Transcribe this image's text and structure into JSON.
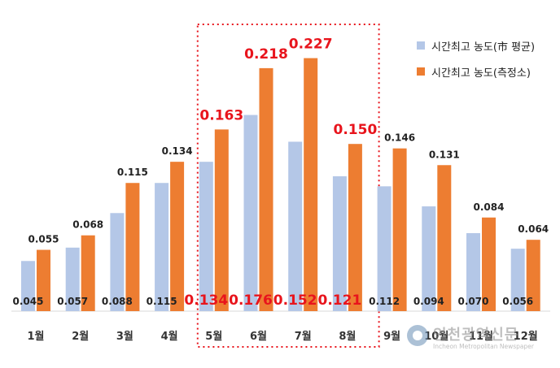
{
  "chart_data": {
    "type": "bar",
    "categories": [
      "1월",
      "2월",
      "3월",
      "4월",
      "5월",
      "6월",
      "7월",
      "8월",
      "9월",
      "10월",
      "11월",
      "12월"
    ],
    "series": [
      {
        "name": "시간최고 농도(市 평균)",
        "color": "#b4c7e7",
        "values": [
          0.045,
          0.057,
          0.088,
          0.115,
          0.134,
          0.176,
          0.152,
          0.121,
          0.112,
          0.094,
          0.07,
          0.056
        ],
        "labels": [
          "0.045",
          "0.057",
          "0.088",
          "0.115",
          "0.134",
          "0.176",
          "0.152",
          "0.121",
          "0.112",
          "0.094",
          "0.070",
          "0.056"
        ]
      },
      {
        "name": "시간최고 농도(측정소)",
        "color": "#ed7d31",
        "values": [
          0.055,
          0.068,
          0.115,
          0.134,
          0.163,
          0.218,
          0.227,
          0.15,
          0.146,
          0.131,
          0.084,
          0.064
        ],
        "labels": [
          "0.055",
          "0.068",
          "0.115",
          "0.134",
          "0.163",
          "0.218",
          "0.227",
          "0.150",
          "0.146",
          "0.131",
          "0.084",
          "0.064"
        ]
      }
    ],
    "highlight_categories": [
      "5월",
      "6월",
      "7월",
      "8월"
    ],
    "highlight_color": "#e8141c",
    "label_color": "#222222",
    "legend_position": "top-right",
    "grid": false,
    "ylim": [
      0,
      0.25
    ]
  },
  "watermark": {
    "title": "인천광역신문",
    "subtitle": "Incheon Metropolitan Newspaper"
  }
}
